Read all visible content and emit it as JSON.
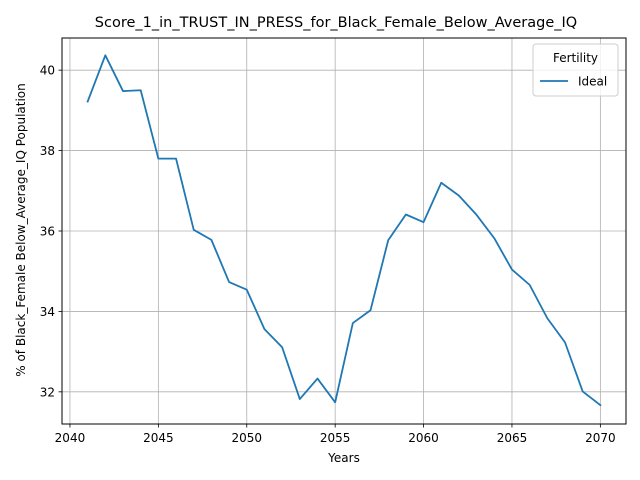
{
  "chart_data": {
    "type": "line",
    "title": "Score_1_in_TRUST_IN_PRESS_for_Black_Female_Below_Average_IQ",
    "xlabel": "Years",
    "ylabel": "% of Black_Female Below_Average_IQ Population",
    "xlim": [
      2039.55,
      2071.45
    ],
    "ylim": [
      31.2,
      40.8
    ],
    "x_ticks": [
      2040,
      2045,
      2050,
      2055,
      2060,
      2065,
      2070
    ],
    "y_ticks": [
      32,
      34,
      36,
      38,
      40
    ],
    "grid": true,
    "legend": {
      "title": "Fertility",
      "position": "top-right"
    },
    "series": [
      {
        "name": "Ideal",
        "color": "#1f77b4",
        "x": [
          2041,
          2042,
          2043,
          2044,
          2045,
          2046,
          2047,
          2048,
          2049,
          2050,
          2051,
          2052,
          2053,
          2054,
          2055,
          2056,
          2057,
          2058,
          2059,
          2060,
          2061,
          2062,
          2063,
          2064,
          2065,
          2066,
          2067,
          2068,
          2069,
          2070
        ],
        "values": [
          39.22,
          40.37,
          39.48,
          39.5,
          37.8,
          37.8,
          36.03,
          35.78,
          34.73,
          34.54,
          33.56,
          33.11,
          31.82,
          32.33,
          31.74,
          33.71,
          34.03,
          35.77,
          36.41,
          36.22,
          37.2,
          36.88,
          36.4,
          35.82,
          35.04,
          34.66,
          33.83,
          33.23,
          32.01,
          31.67
        ]
      }
    ]
  }
}
